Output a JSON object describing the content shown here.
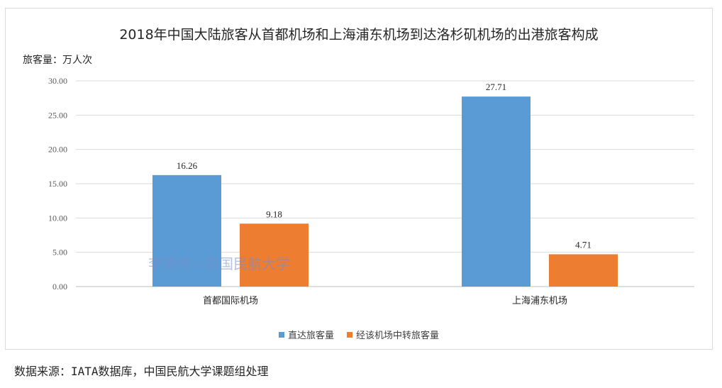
{
  "chart_data": {
    "type": "bar",
    "title": "2018年中国大陆旅客从首都机场和上海浦东机场到达洛杉矶机场的出港旅客构成",
    "ylabel": "旅客量：万人次",
    "xlabel": "",
    "categories": [
      "首都国际机场",
      "上海浦东机场"
    ],
    "series": [
      {
        "name": "直达旅客量",
        "values": [
          16.26,
          27.71
        ],
        "color": "#5b9bd5"
      },
      {
        "name": "经该机场中转旅客量",
        "values": [
          9.18,
          4.71
        ],
        "color": "#ed7d31"
      }
    ],
    "ylim": [
      0,
      30
    ],
    "yticks": [
      "0.00",
      "5.00",
      "10.00",
      "15.00",
      "20.00",
      "25.00",
      "30.00"
    ],
    "data_labels": [
      [
        "16.26",
        "27.71"
      ],
      [
        "9.18",
        "4.71"
      ]
    ],
    "grid": true,
    "legend_position": "bottom"
  },
  "watermark": "李艳伟—中国民航大学",
  "source_note": "数据来源：IATA数据库，中国民航大学课题组处理"
}
